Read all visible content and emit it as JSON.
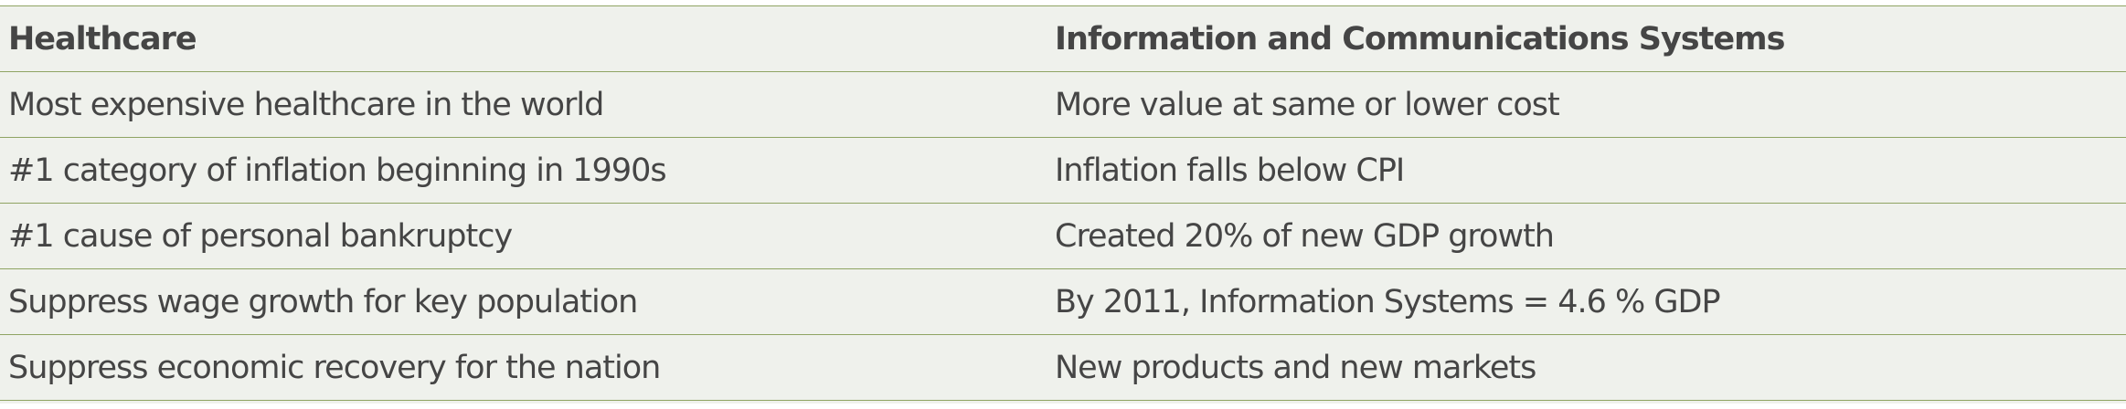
{
  "table": {
    "header": [
      "Healthcare",
      "Information and Communications Systems"
    ],
    "rows": [
      [
        "Most expensive healthcare in the world",
        "More value at same or lower cost"
      ],
      [
        "#1 category of inflation beginning in 1990s",
        "Inflation falls below CPI"
      ],
      [
        "#1 cause of personal bankruptcy",
        "Created 20% of new GDP growth"
      ],
      [
        "Suppress wage growth for key population",
        "By 2011, Information Systems = 4.6 % GDP"
      ],
      [
        "Suppress economic recovery for the nation",
        "New products and new markets"
      ]
    ]
  }
}
